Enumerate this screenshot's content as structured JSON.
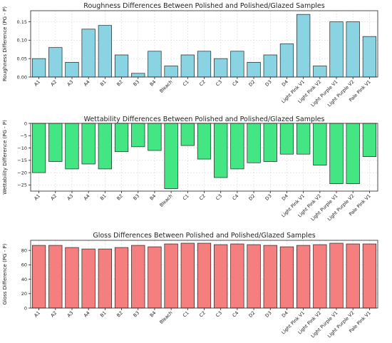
{
  "chart_data": [
    {
      "type": "bar",
      "title": "Roughness Differences Between Polished and Polished/Glazed Samples",
      "ylabel": "Roughness Difference (PG - P)",
      "xlabel": "",
      "categories": [
        "A1",
        "A2",
        "A3",
        "A4",
        "B1",
        "B2",
        "B3",
        "B4",
        "Bleach",
        "C1",
        "C2",
        "C3",
        "C4",
        "D2",
        "D3",
        "D4",
        "Light Pink V1",
        "Light Pink V2",
        "Light Purple V1",
        "Light Purple V2",
        "Pale Pink V1"
      ],
      "values": [
        0.05,
        0.08,
        0.04,
        0.13,
        0.14,
        0.06,
        0.01,
        0.07,
        0.03,
        0.06,
        0.07,
        0.05,
        0.07,
        0.04,
        0.06,
        0.09,
        0.17,
        0.03,
        0.15,
        0.15,
        0.11
      ],
      "ylim": [
        0,
        0.18
      ],
      "yticks": [
        0.0,
        0.05,
        0.1,
        0.15
      ],
      "ytick_labels": [
        "0.00",
        "0.05",
        "0.10",
        "0.15"
      ],
      "color": "#89d3e3",
      "grid": true
    },
    {
      "type": "bar",
      "title": "Wettability Differences Between Polished and Polished/Glazed Samples",
      "ylabel": "Wettability Difference (PG - P)",
      "xlabel": "",
      "categories": [
        "A1",
        "A2",
        "A3",
        "A4",
        "B1",
        "B2",
        "B3",
        "B4",
        "Bleach",
        "C1",
        "C2",
        "C3",
        "C4",
        "D2",
        "D3",
        "D4",
        "Light Pink V1",
        "Light Pink V2",
        "Light Purple V1",
        "Light Purple V2",
        "Pale Pink V1"
      ],
      "values": [
        -20,
        -15.5,
        -18.5,
        -16.5,
        -18.5,
        -11.5,
        -9.5,
        -11,
        -26.5,
        -9,
        -14.5,
        -22,
        -18.5,
        -16,
        -15.5,
        -12.5,
        -12.5,
        -17,
        -24.5,
        -24.5,
        -13.5
      ],
      "ylim": [
        -27.5,
        0
      ],
      "yticks": [
        0,
        -5,
        -10,
        -15,
        -20,
        -25
      ],
      "ytick_labels": [
        "0",
        "−5",
        "−10",
        "−15",
        "−20",
        "−25"
      ],
      "color": "#44e684",
      "grid": true
    },
    {
      "type": "bar",
      "title": "Gloss Differences Between Polished and Polished/Glazed Samples",
      "ylabel": "Gloss Difference (PG - P)",
      "xlabel": "",
      "categories": [
        "A1",
        "A2",
        "A3",
        "A4",
        "B1",
        "B2",
        "B3",
        "B4",
        "Bleach",
        "C1",
        "C2",
        "C3",
        "C4",
        "D2",
        "D3",
        "D4",
        "Light Pink V1",
        "Light Pink V2",
        "Light Purple V1",
        "Light Purple V2",
        "Pale Pink V1"
      ],
      "values": [
        87,
        87,
        84,
        82,
        82,
        84,
        87,
        85,
        89,
        90,
        90,
        88,
        89,
        88,
        87,
        85,
        87,
        88,
        90,
        89,
        89
      ],
      "ylim": [
        0,
        94
      ],
      "yticks": [
        0,
        20,
        40,
        60,
        80
      ],
      "ytick_labels": [
        "0",
        "20",
        "40",
        "60",
        "80"
      ],
      "color": "#f57e7e",
      "grid": true
    }
  ]
}
